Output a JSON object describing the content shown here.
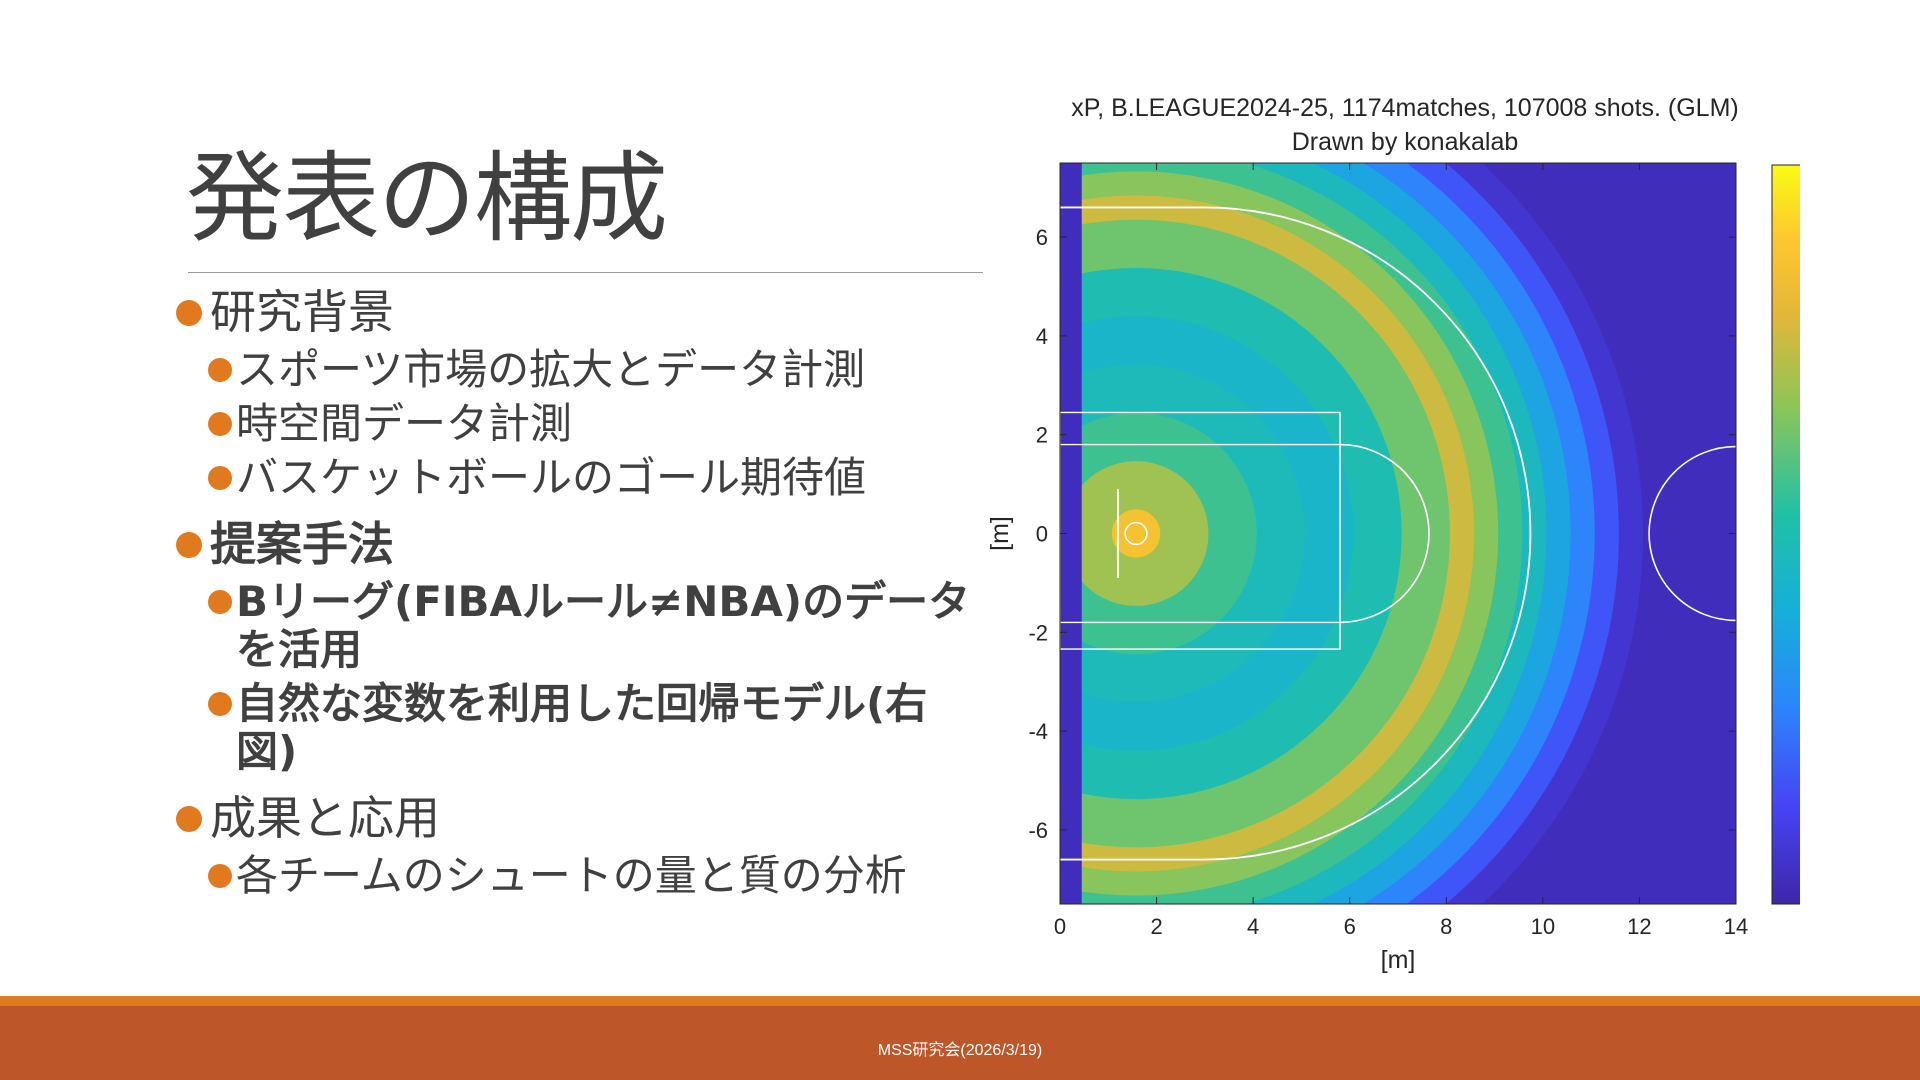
{
  "slide": {
    "title": "発表の構成",
    "bullets": [
      {
        "text": "研究背景",
        "bold": false,
        "children": [
          {
            "text": "スポーツ市場の拡大とデータ計測",
            "bold": false
          },
          {
            "text": "時空間データ計測",
            "bold": false
          },
          {
            "text": "バスケットボールのゴール期待値",
            "bold": false
          }
        ]
      },
      {
        "text": "提案手法",
        "bold": true,
        "children": [
          {
            "text": "Bリーグ(FIBAルール≠NBA)のデータを活用",
            "bold": true
          },
          {
            "text": "自然な変数を利用した回帰モデル(右図)",
            "bold": true
          }
        ]
      },
      {
        "text": "成果と応用",
        "bold": false,
        "children": [
          {
            "text": "各チームのシュートの量と質の分析",
            "bold": false
          }
        ]
      }
    ],
    "bullet_color": "#E17A1F"
  },
  "footer": {
    "text": "MSS研究会(2026/3/19)",
    "color": "#BD572A",
    "stripe_color": "#E17A1F"
  },
  "chart_data": {
    "type": "heatmap",
    "title": "xP, B.LEAGUE2024-25, 1174matches, 107008 shots. (GLM)",
    "subtitle": "Drawn by konakalab",
    "xlabel": "[m]",
    "ylabel": "[m]",
    "xlim": [
      0,
      14
    ],
    "ylim": [
      -7.5,
      7.5
    ],
    "x_ticks": [
      0,
      2,
      4,
      6,
      8,
      10,
      12,
      14
    ],
    "y_ticks": [
      -6,
      -4,
      -2,
      0,
      2,
      4,
      6
    ],
    "colorbar": {
      "min": 0,
      "max": 1.5,
      "ticks": [
        "0",
        "0.5",
        "1",
        "1.5"
      ]
    },
    "colormap": "parula",
    "hoop": {
      "x": 1.575,
      "y": 0
    },
    "approx_value_by_distance_from_hoop_m": [
      {
        "r": 0.5,
        "value": 1.3
      },
      {
        "r": 1.5,
        "value": 1.05
      },
      {
        "r": 2.5,
        "value": 0.85
      },
      {
        "r": 3.5,
        "value": 0.72
      },
      {
        "r": 4.5,
        "value": 0.66
      },
      {
        "r": 5.5,
        "value": 0.75
      },
      {
        "r": 6.5,
        "value": 0.95
      },
      {
        "r": 7.0,
        "value": 1.15
      },
      {
        "r": 7.5,
        "value": 1.0
      },
      {
        "r": 8.0,
        "value": 0.85
      },
      {
        "r": 8.5,
        "value": 0.7
      },
      {
        "r": 9.0,
        "value": 0.55
      },
      {
        "r": 9.5,
        "value": 0.4
      },
      {
        "r": 10.0,
        "value": 0.25
      },
      {
        "r": 10.5,
        "value": 0.1
      }
    ]
  }
}
